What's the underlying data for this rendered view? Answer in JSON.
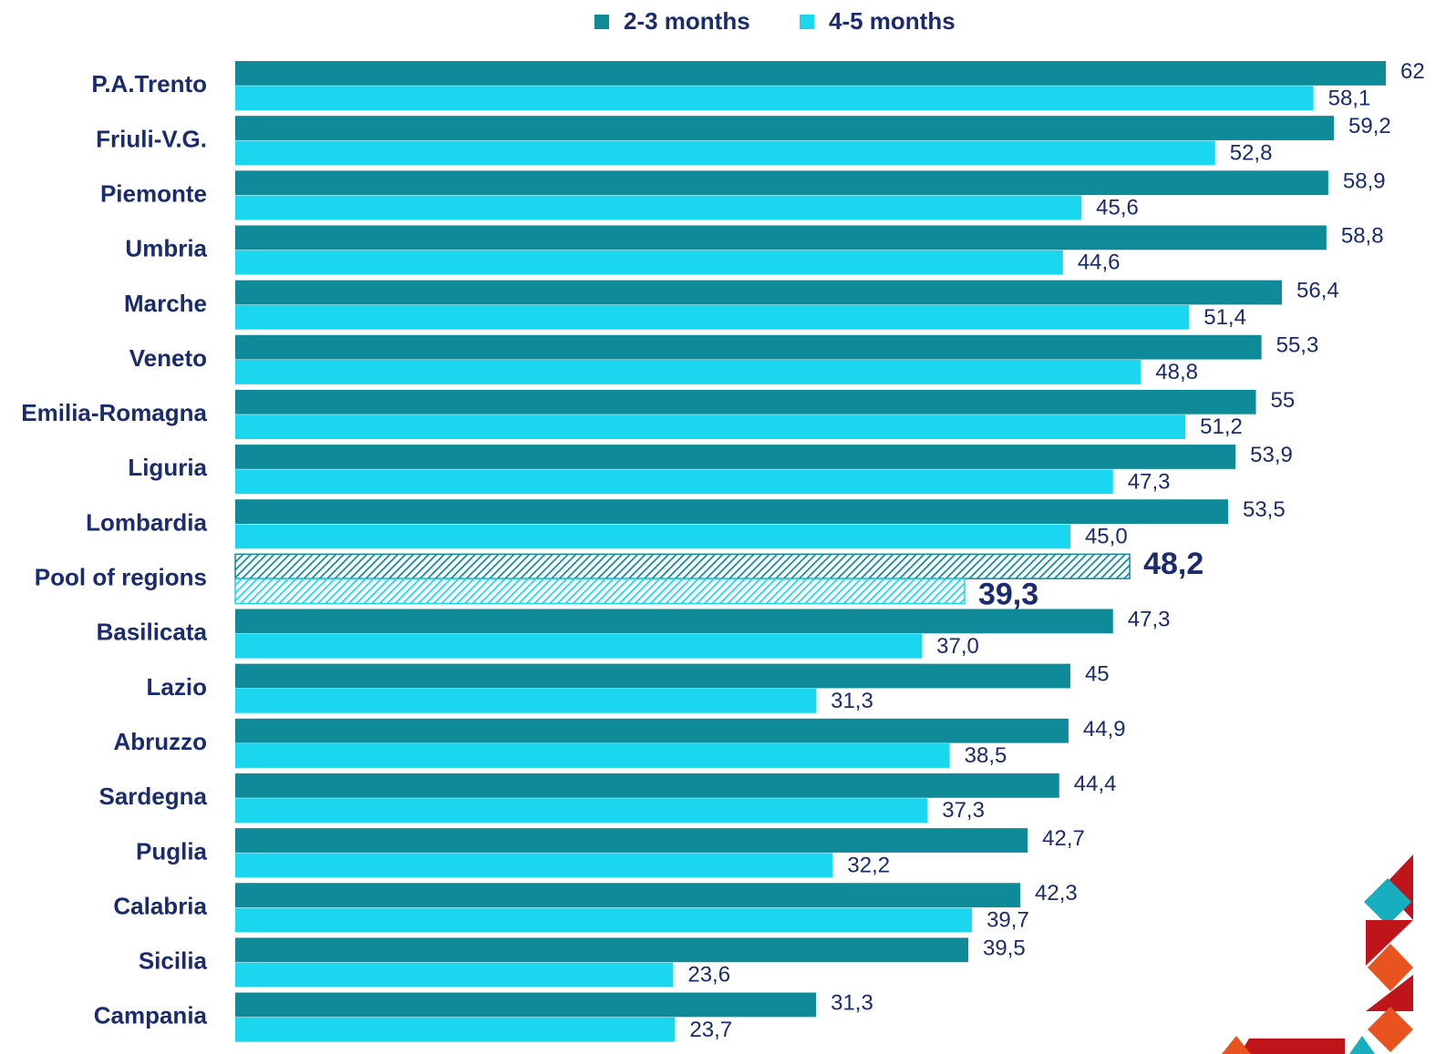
{
  "chart_data": {
    "type": "hbar",
    "categories": [
      "P.A.Trento",
      "Friuli-V.G.",
      "Piemonte",
      "Umbria",
      "Marche",
      "Veneto",
      "Emilia-Romagna",
      "Liguria",
      "Lombardia",
      "Pool of regions",
      "Basilicata",
      "Lazio",
      "Abruzzo",
      "Sardegna",
      "Puglia",
      "Calabria",
      "Sicilia",
      "Campania"
    ],
    "series": [
      {
        "name": "2-3 months",
        "color": "#0e8a98",
        "values": [
          62,
          59.2,
          58.9,
          58.8,
          56.4,
          55.3,
          55,
          53.9,
          53.5,
          48.2,
          47.3,
          45,
          44.9,
          44.4,
          42.7,
          42.3,
          39.5,
          31.3
        ],
        "value_labels": [
          "62",
          "59,2",
          "58,9",
          "58,8",
          "56,4",
          "55,3",
          "55",
          "53,9",
          "53,5",
          "48,2",
          "47,3",
          "45",
          "44,9",
          "44,4",
          "42,7",
          "42,3",
          "39,5",
          "31,3"
        ]
      },
      {
        "name": "4-5 months",
        "color": "#1ad6ef",
        "values": [
          58.1,
          52.8,
          45.6,
          44.6,
          51.4,
          48.8,
          51.2,
          47.3,
          45.0,
          39.3,
          37.0,
          31.3,
          38.5,
          37.3,
          32.2,
          39.7,
          23.6,
          23.7
        ],
        "value_labels": [
          "58,1",
          "52,8",
          "45,6",
          "44,6",
          "51,4",
          "48,8",
          "51,2",
          "47,3",
          "45,0",
          "39,3",
          "37,0",
          "31,3",
          "38,5",
          "37,3",
          "32,2",
          "39,7",
          "23,6",
          "23,7"
        ]
      }
    ],
    "highlighted_categories": [
      9
    ],
    "legend": "top"
  }
}
